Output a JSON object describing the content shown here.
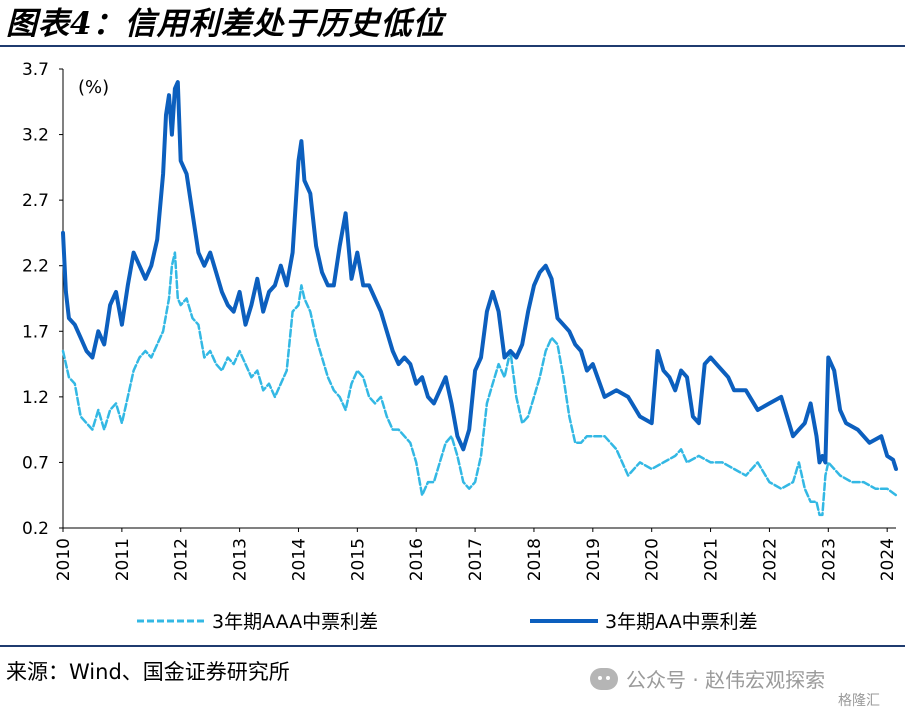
{
  "title": "图表4：信用利差处于历史低位",
  "source": "来源：Wind、国金证券研究所",
  "watermark": "公众号 · 赵伟宏观探索",
  "badge": "格隆汇",
  "chart_data": {
    "type": "line",
    "title": "",
    "unit_label": "(%)",
    "xlabel": "",
    "ylabel": "",
    "x_ticks": [
      "2010",
      "2011",
      "2012",
      "2013",
      "2014",
      "2015",
      "2016",
      "2017",
      "2018",
      "2019",
      "2020",
      "2021",
      "2022",
      "2023",
      "2024"
    ],
    "y_ticks": [
      "0.2",
      "0.7",
      "1.2",
      "1.7",
      "2.2",
      "2.7",
      "3.2",
      "3.7"
    ],
    "ylim": [
      0.2,
      3.7
    ],
    "xlim": [
      2010.0,
      2024.15
    ],
    "grid": false,
    "legend_position": "bottom",
    "colors": {
      "aaa": "#33b8e4",
      "aa": "#0c5fbe"
    },
    "series": [
      {
        "name": "3年期AAA中票利差",
        "style": "dashed",
        "x": [
          2010.0,
          2010.1,
          2010.2,
          2010.3,
          2010.4,
          2010.5,
          2010.6,
          2010.7,
          2010.8,
          2010.9,
          2011.0,
          2011.1,
          2011.2,
          2011.3,
          2011.4,
          2011.5,
          2011.6,
          2011.7,
          2011.8,
          2011.85,
          2011.9,
          2011.95,
          2012.0,
          2012.1,
          2012.2,
          2012.3,
          2012.4,
          2012.5,
          2012.6,
          2012.7,
          2012.8,
          2012.9,
          2013.0,
          2013.1,
          2013.2,
          2013.3,
          2013.4,
          2013.5,
          2013.6,
          2013.7,
          2013.8,
          2013.9,
          2014.0,
          2014.05,
          2014.1,
          2014.2,
          2014.3,
          2014.4,
          2014.5,
          2014.6,
          2014.7,
          2014.8,
          2014.9,
          2015.0,
          2015.1,
          2015.2,
          2015.3,
          2015.4,
          2015.5,
          2015.6,
          2015.7,
          2015.8,
          2015.9,
          2016.0,
          2016.1,
          2016.2,
          2016.3,
          2016.4,
          2016.5,
          2016.6,
          2016.7,
          2016.8,
          2016.9,
          2017.0,
          2017.1,
          2017.2,
          2017.3,
          2017.4,
          2017.5,
          2017.6,
          2017.7,
          2017.8,
          2017.9,
          2018.0,
          2018.1,
          2018.2,
          2018.3,
          2018.4,
          2018.5,
          2018.6,
          2018.7,
          2018.8,
          2018.9,
          2019.0,
          2019.2,
          2019.4,
          2019.6,
          2019.8,
          2020.0,
          2020.2,
          2020.4,
          2020.5,
          2020.6,
          2020.8,
          2021.0,
          2021.2,
          2021.4,
          2021.6,
          2021.8,
          2022.0,
          2022.2,
          2022.4,
          2022.5,
          2022.6,
          2022.7,
          2022.8,
          2022.85,
          2022.9,
          2022.95,
          2023.0,
          2023.2,
          2023.4,
          2023.6,
          2023.8,
          2024.0,
          2024.15
        ],
        "y": [
          1.55,
          1.35,
          1.3,
          1.05,
          1.0,
          0.95,
          1.1,
          0.95,
          1.1,
          1.15,
          1.0,
          1.2,
          1.4,
          1.5,
          1.55,
          1.5,
          1.6,
          1.7,
          1.95,
          2.2,
          2.3,
          1.95,
          1.9,
          1.95,
          1.8,
          1.75,
          1.5,
          1.55,
          1.45,
          1.4,
          1.5,
          1.45,
          1.55,
          1.45,
          1.35,
          1.4,
          1.25,
          1.3,
          1.2,
          1.3,
          1.4,
          1.85,
          1.9,
          2.05,
          1.95,
          1.85,
          1.65,
          1.5,
          1.35,
          1.25,
          1.2,
          1.1,
          1.3,
          1.4,
          1.35,
          1.2,
          1.15,
          1.2,
          1.05,
          0.95,
          0.95,
          0.9,
          0.85,
          0.7,
          0.45,
          0.55,
          0.55,
          0.7,
          0.85,
          0.9,
          0.75,
          0.55,
          0.5,
          0.55,
          0.75,
          1.15,
          1.3,
          1.45,
          1.35,
          1.55,
          1.2,
          1.0,
          1.05,
          1.2,
          1.35,
          1.55,
          1.65,
          1.6,
          1.35,
          1.05,
          0.85,
          0.85,
          0.9,
          0.9,
          0.9,
          0.8,
          0.6,
          0.7,
          0.65,
          0.7,
          0.75,
          0.8,
          0.7,
          0.75,
          0.7,
          0.7,
          0.65,
          0.6,
          0.7,
          0.55,
          0.5,
          0.55,
          0.7,
          0.5,
          0.4,
          0.4,
          0.3,
          0.3,
          0.6,
          0.7,
          0.6,
          0.55,
          0.55,
          0.5,
          0.5,
          0.45
        ]
      },
      {
        "name": "3年期AA中票利差",
        "style": "solid",
        "x": [
          2010.0,
          2010.05,
          2010.1,
          2010.2,
          2010.3,
          2010.4,
          2010.5,
          2010.6,
          2010.7,
          2010.8,
          2010.9,
          2011.0,
          2011.1,
          2011.2,
          2011.3,
          2011.4,
          2011.5,
          2011.6,
          2011.7,
          2011.75,
          2011.8,
          2011.85,
          2011.9,
          2011.95,
          2012.0,
          2012.1,
          2012.2,
          2012.3,
          2012.4,
          2012.5,
          2012.6,
          2012.7,
          2012.8,
          2012.9,
          2013.0,
          2013.1,
          2013.2,
          2013.3,
          2013.4,
          2013.5,
          2013.6,
          2013.7,
          2013.8,
          2013.9,
          2014.0,
          2014.05,
          2014.1,
          2014.2,
          2014.3,
          2014.4,
          2014.5,
          2014.6,
          2014.7,
          2014.8,
          2014.9,
          2015.0,
          2015.1,
          2015.2,
          2015.3,
          2015.4,
          2015.5,
          2015.6,
          2015.7,
          2015.8,
          2015.9,
          2016.0,
          2016.1,
          2016.2,
          2016.3,
          2016.4,
          2016.5,
          2016.6,
          2016.7,
          2016.8,
          2016.9,
          2017.0,
          2017.1,
          2017.2,
          2017.3,
          2017.4,
          2017.5,
          2017.6,
          2017.7,
          2017.8,
          2017.9,
          2018.0,
          2018.1,
          2018.2,
          2018.3,
          2018.4,
          2018.5,
          2018.6,
          2018.7,
          2018.8,
          2018.9,
          2019.0,
          2019.2,
          2019.4,
          2019.6,
          2019.8,
          2020.0,
          2020.1,
          2020.2,
          2020.3,
          2020.4,
          2020.5,
          2020.6,
          2020.7,
          2020.8,
          2020.9,
          2021.0,
          2021.1,
          2021.2,
          2021.3,
          2021.4,
          2021.6,
          2021.8,
          2022.0,
          2022.2,
          2022.4,
          2022.5,
          2022.6,
          2022.7,
          2022.8,
          2022.85,
          2022.9,
          2022.95,
          2023.0,
          2023.1,
          2023.2,
          2023.3,
          2023.5,
          2023.7,
          2023.9,
          2024.0,
          2024.1,
          2024.15
        ],
        "y": [
          2.45,
          2.0,
          1.8,
          1.75,
          1.65,
          1.55,
          1.5,
          1.7,
          1.6,
          1.9,
          2.0,
          1.75,
          2.05,
          2.3,
          2.2,
          2.1,
          2.2,
          2.4,
          2.9,
          3.35,
          3.5,
          3.2,
          3.55,
          3.6,
          3.0,
          2.9,
          2.6,
          2.3,
          2.2,
          2.3,
          2.15,
          2.0,
          1.9,
          1.85,
          2.0,
          1.75,
          1.9,
          2.1,
          1.85,
          2.0,
          2.05,
          2.2,
          2.05,
          2.3,
          3.0,
          3.15,
          2.85,
          2.75,
          2.35,
          2.15,
          2.05,
          2.05,
          2.35,
          2.6,
          2.1,
          2.3,
          2.05,
          2.05,
          1.95,
          1.85,
          1.7,
          1.55,
          1.45,
          1.5,
          1.45,
          1.3,
          1.35,
          1.2,
          1.15,
          1.25,
          1.35,
          1.15,
          0.9,
          0.8,
          0.95,
          1.4,
          1.5,
          1.85,
          2.0,
          1.85,
          1.5,
          1.55,
          1.5,
          1.6,
          1.85,
          2.05,
          2.15,
          2.2,
          2.1,
          1.8,
          1.75,
          1.7,
          1.6,
          1.55,
          1.4,
          1.45,
          1.2,
          1.25,
          1.2,
          1.05,
          1.0,
          1.55,
          1.4,
          1.35,
          1.25,
          1.4,
          1.35,
          1.05,
          1.0,
          1.45,
          1.5,
          1.45,
          1.4,
          1.35,
          1.25,
          1.25,
          1.1,
          1.15,
          1.2,
          0.9,
          0.95,
          1.0,
          1.15,
          0.9,
          0.7,
          0.75,
          0.7,
          1.5,
          1.4,
          1.1,
          1.0,
          0.95,
          0.85,
          0.9,
          0.75,
          0.72,
          0.65
        ]
      }
    ]
  }
}
